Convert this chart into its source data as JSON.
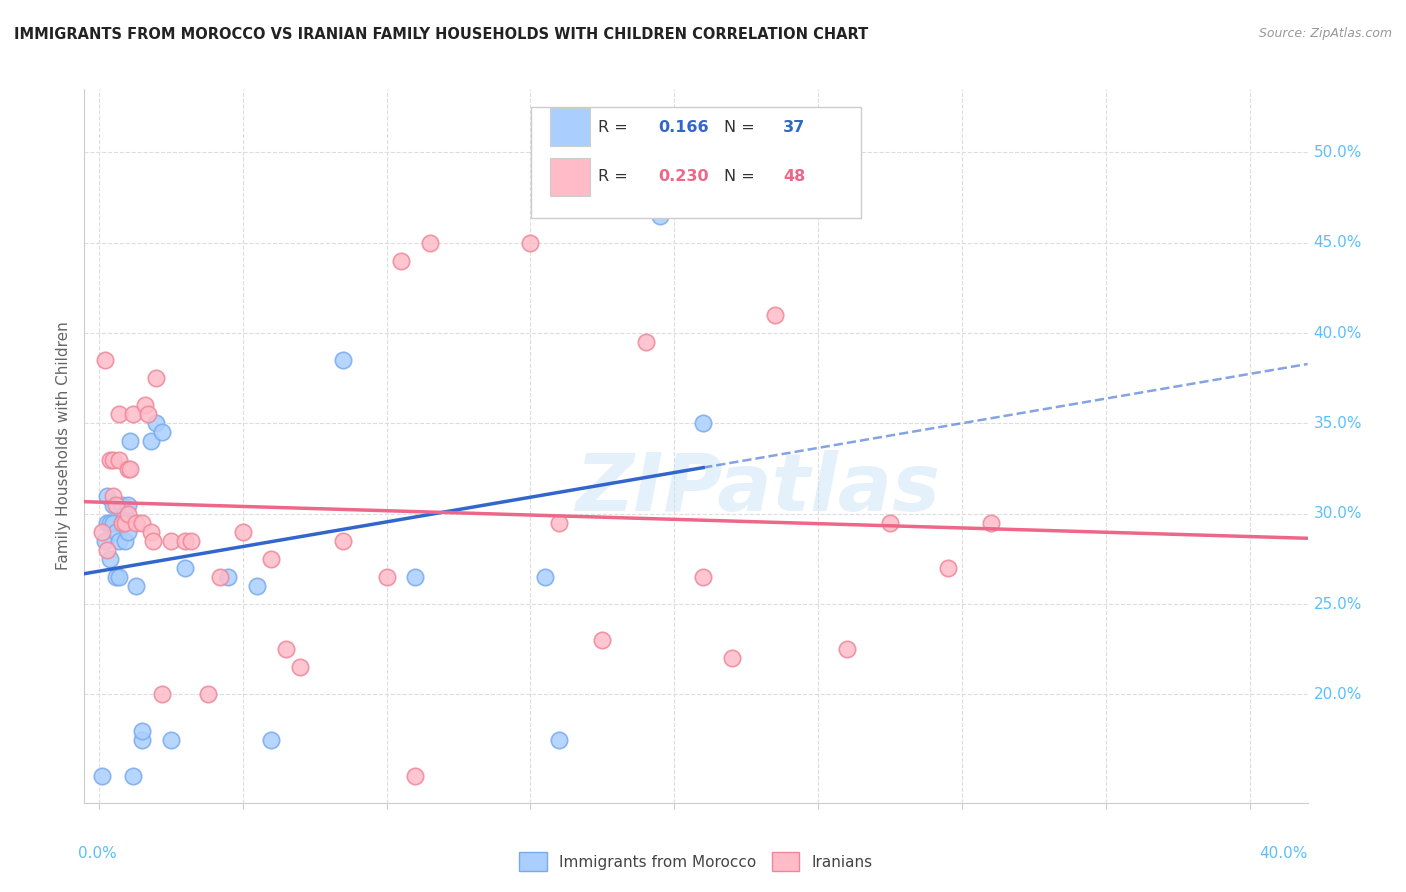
{
  "title": "IMMIGRANTS FROM MOROCCO VS IRANIAN FAMILY HOUSEHOLDS WITH CHILDREN CORRELATION CHART",
  "source": "Source: ZipAtlas.com",
  "ylabel": "Family Households with Children",
  "background_color": "#ffffff",
  "grid_color": "#dddddd",
  "title_fontsize": 11,
  "axis_label_color": "#5bbfff",
  "xlim": [
    -0.005,
    0.42
  ],
  "ylim": [
    0.14,
    0.535
  ],
  "y_grid_vals": [
    0.2,
    0.25,
    0.3,
    0.35,
    0.4,
    0.45,
    0.5
  ],
  "y_right_labels": [
    "20.0%",
    "25.0%",
    "30.0%",
    "35.0%",
    "40.0%",
    "45.0%",
    "50.0%"
  ],
  "x_minor_ticks": [
    0.0,
    0.05,
    0.1,
    0.15,
    0.2,
    0.25,
    0.3,
    0.35,
    0.4
  ],
  "morocco_color": "#aacfff",
  "iran_color": "#ffbbc8",
  "morocco_edge_color": "#7aaaee",
  "iran_edge_color": "#ee8899",
  "morocco_line_color": "#3366cc",
  "iran_line_color": "#ee6688",
  "watermark": "ZIPatlas",
  "legend_R_blue": "0.166",
  "legend_N_blue": "37",
  "legend_R_pink": "0.230",
  "legend_N_pink": "48",
  "morocco_x": [
    0.001,
    0.002,
    0.003,
    0.003,
    0.004,
    0.004,
    0.005,
    0.005,
    0.006,
    0.006,
    0.007,
    0.007,
    0.008,
    0.008,
    0.009,
    0.009,
    0.01,
    0.01,
    0.011,
    0.012,
    0.013,
    0.015,
    0.015,
    0.018,
    0.02,
    0.022,
    0.025,
    0.03,
    0.045,
    0.055,
    0.06,
    0.085,
    0.11,
    0.155,
    0.16,
    0.195,
    0.21
  ],
  "morocco_y": [
    0.155,
    0.285,
    0.295,
    0.31,
    0.275,
    0.295,
    0.295,
    0.305,
    0.265,
    0.29,
    0.265,
    0.285,
    0.295,
    0.305,
    0.285,
    0.3,
    0.29,
    0.305,
    0.34,
    0.155,
    0.26,
    0.175,
    0.18,
    0.34,
    0.35,
    0.345,
    0.175,
    0.27,
    0.265,
    0.26,
    0.175,
    0.385,
    0.265,
    0.265,
    0.175,
    0.465,
    0.35
  ],
  "iran_x": [
    0.001,
    0.002,
    0.003,
    0.004,
    0.005,
    0.005,
    0.006,
    0.007,
    0.007,
    0.008,
    0.009,
    0.01,
    0.01,
    0.011,
    0.012,
    0.013,
    0.015,
    0.016,
    0.017,
    0.018,
    0.019,
    0.02,
    0.022,
    0.025,
    0.03,
    0.032,
    0.038,
    0.042,
    0.05,
    0.06,
    0.065,
    0.07,
    0.085,
    0.1,
    0.11,
    0.115,
    0.15,
    0.16,
    0.175,
    0.19,
    0.21,
    0.22,
    0.235,
    0.26,
    0.275,
    0.295,
    0.31,
    0.105
  ],
  "iran_y": [
    0.29,
    0.385,
    0.28,
    0.33,
    0.31,
    0.33,
    0.305,
    0.33,
    0.355,
    0.295,
    0.295,
    0.3,
    0.325,
    0.325,
    0.355,
    0.295,
    0.295,
    0.36,
    0.355,
    0.29,
    0.285,
    0.375,
    0.2,
    0.285,
    0.285,
    0.285,
    0.2,
    0.265,
    0.29,
    0.275,
    0.225,
    0.215,
    0.285,
    0.265,
    0.155,
    0.45,
    0.45,
    0.295,
    0.23,
    0.395,
    0.265,
    0.22,
    0.41,
    0.225,
    0.295,
    0.27,
    0.295,
    0.44
  ]
}
